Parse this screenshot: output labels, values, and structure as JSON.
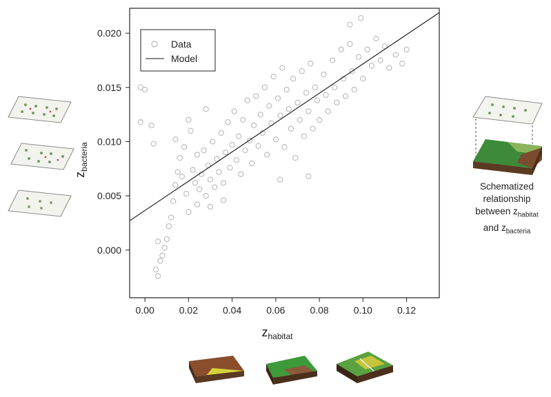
{
  "chart_data": {
    "type": "scatter",
    "xlabel": {
      "main": "z",
      "sub": "habitat"
    },
    "ylabel": {
      "main": "z",
      "sub": "bacteria"
    },
    "xlim": [
      -0.007,
      0.135
    ],
    "ylim": [
      -0.0044,
      0.0223
    ],
    "x_ticks": [
      0.0,
      0.02,
      0.04,
      0.06,
      0.08,
      0.1,
      0.12
    ],
    "x_tick_labels": [
      "0.00",
      "0.02",
      "0.04",
      "0.06",
      "0.08",
      "0.10",
      "0.12"
    ],
    "y_ticks": [
      0.0,
      0.005,
      0.01,
      0.015,
      0.02
    ],
    "y_tick_labels": [
      "0.000",
      "0.005",
      "0.010",
      "0.015",
      "0.020"
    ],
    "grid": false,
    "legend": {
      "position": "top-left",
      "entries": [
        "Data",
        "Model"
      ]
    },
    "series": [
      {
        "name": "Data",
        "kind": "points",
        "color": "#b8b8b8",
        "points": [
          [
            -0.002,
            0.015
          ],
          [
            0.0,
            0.0148
          ],
          [
            -0.002,
            0.0118
          ],
          [
            0.003,
            0.0115
          ],
          [
            0.004,
            0.0098
          ],
          [
            0.005,
            -0.0018
          ],
          [
            0.006,
            -0.0024
          ],
          [
            0.007,
            -0.001
          ],
          [
            0.008,
            -0.0005
          ],
          [
            0.009,
            0.0002
          ],
          [
            0.006,
            0.0008
          ],
          [
            0.01,
            0.001
          ],
          [
            0.011,
            0.0022
          ],
          [
            0.012,
            0.003
          ],
          [
            0.013,
            0.0045
          ],
          [
            0.014,
            0.006
          ],
          [
            0.015,
            0.0072
          ],
          [
            0.016,
            0.0085
          ],
          [
            0.018,
            0.0095
          ],
          [
            0.017,
            0.0068
          ],
          [
            0.019,
            0.0052
          ],
          [
            0.02,
            0.0035
          ],
          [
            0.021,
            0.011
          ],
          [
            0.022,
            0.0074
          ],
          [
            0.023,
            0.0062
          ],
          [
            0.024,
            0.0088
          ],
          [
            0.025,
            0.0056
          ],
          [
            0.026,
            0.007
          ],
          [
            0.027,
            0.0092
          ],
          [
            0.028,
            0.005
          ],
          [
            0.029,
            0.0078
          ],
          [
            0.03,
            0.0065
          ],
          [
            0.031,
            0.01
          ],
          [
            0.032,
            0.0058
          ],
          [
            0.033,
            0.0084
          ],
          [
            0.034,
            0.0072
          ],
          [
            0.035,
            0.0108
          ],
          [
            0.036,
            0.0062
          ],
          [
            0.037,
            0.009
          ],
          [
            0.038,
            0.0118
          ],
          [
            0.039,
            0.0076
          ],
          [
            0.04,
            0.0097
          ],
          [
            0.041,
            0.0128
          ],
          [
            0.042,
            0.0083
          ],
          [
            0.043,
            0.0105
          ],
          [
            0.044,
            0.007
          ],
          [
            0.045,
            0.012
          ],
          [
            0.046,
            0.0092
          ],
          [
            0.047,
            0.0138
          ],
          [
            0.048,
            0.0101
          ],
          [
            0.049,
            0.008
          ],
          [
            0.05,
            0.0115
          ],
          [
            0.051,
            0.0142
          ],
          [
            0.052,
            0.0096
          ],
          [
            0.053,
            0.0125
          ],
          [
            0.054,
            0.0108
          ],
          [
            0.055,
            0.015
          ],
          [
            0.056,
            0.0088
          ],
          [
            0.057,
            0.0133
          ],
          [
            0.058,
            0.0117
          ],
          [
            0.059,
            0.016
          ],
          [
            0.06,
            0.0102
          ],
          [
            0.061,
            0.014
          ],
          [
            0.062,
            0.0124
          ],
          [
            0.063,
            0.0168
          ],
          [
            0.064,
            0.0095
          ],
          [
            0.065,
            0.0148
          ],
          [
            0.066,
            0.013
          ],
          [
            0.067,
            0.0112
          ],
          [
            0.068,
            0.0158
          ],
          [
            0.069,
            0.0085
          ],
          [
            0.07,
            0.0136
          ],
          [
            0.071,
            0.012
          ],
          [
            0.072,
            0.0165
          ],
          [
            0.073,
            0.0105
          ],
          [
            0.074,
            0.0145
          ],
          [
            0.075,
            0.0128
          ],
          [
            0.076,
            0.0172
          ],
          [
            0.077,
            0.0112
          ],
          [
            0.078,
            0.015
          ],
          [
            0.079,
            0.0138
          ],
          [
            0.08,
            0.012
          ],
          [
            0.082,
            0.0162
          ],
          [
            0.083,
            0.0143
          ],
          [
            0.084,
            0.0128
          ],
          [
            0.086,
            0.0175
          ],
          [
            0.087,
            0.015
          ],
          [
            0.088,
            0.0136
          ],
          [
            0.09,
            0.0185
          ],
          [
            0.091,
            0.0158
          ],
          [
            0.092,
            0.0142
          ],
          [
            0.094,
            0.019
          ],
          [
            0.095,
            0.0165
          ],
          [
            0.096,
            0.0148
          ],
          [
            0.098,
            0.0178
          ],
          [
            0.1,
            0.0158
          ],
          [
            0.102,
            0.0185
          ],
          [
            0.104,
            0.017
          ],
          [
            0.106,
            0.0195
          ],
          [
            0.108,
            0.0175
          ],
          [
            0.11,
            0.0188
          ],
          [
            0.112,
            0.0168
          ],
          [
            0.115,
            0.018
          ],
          [
            0.118,
            0.0172
          ],
          [
            0.12,
            0.0185
          ],
          [
            0.099,
            0.0214
          ],
          [
            0.094,
            0.0208
          ],
          [
            0.075,
            0.0068
          ],
          [
            0.062,
            0.0065
          ],
          [
            0.028,
            0.013
          ],
          [
            0.02,
            0.012
          ],
          [
            0.014,
            0.0102
          ],
          [
            0.024,
            0.0042
          ],
          [
            0.03,
            0.004
          ],
          [
            0.036,
            0.0046
          ]
        ]
      },
      {
        "name": "Model",
        "kind": "line",
        "color": "#111111",
        "points": [
          [
            -0.007,
            0.0027
          ],
          [
            0.135,
            0.0219
          ]
        ]
      }
    ]
  },
  "side_caption": {
    "line1": "Schematized",
    "line2": "relationship",
    "line3_prefix": "between z",
    "line3_sub": "habitat",
    "line4_prefix": "and z",
    "line4_sub": "bacteria"
  }
}
